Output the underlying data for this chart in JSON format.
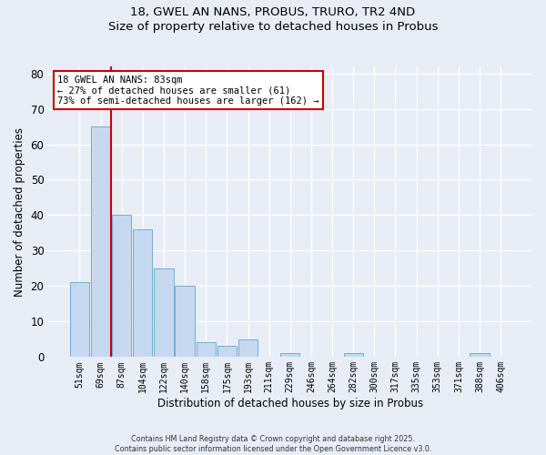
{
  "title": "18, GWEL AN NANS, PROBUS, TRURO, TR2 4ND",
  "subtitle": "Size of property relative to detached houses in Probus",
  "xlabel": "Distribution of detached houses by size in Probus",
  "ylabel": "Number of detached properties",
  "bar_labels": [
    "51sqm",
    "69sqm",
    "87sqm",
    "104sqm",
    "122sqm",
    "140sqm",
    "158sqm",
    "175sqm",
    "193sqm",
    "211sqm",
    "229sqm",
    "246sqm",
    "264sqm",
    "282sqm",
    "300sqm",
    "317sqm",
    "335sqm",
    "353sqm",
    "371sqm",
    "388sqm",
    "406sqm"
  ],
  "bar_values": [
    21,
    65,
    40,
    36,
    25,
    20,
    4,
    3,
    5,
    0,
    1,
    0,
    0,
    1,
    0,
    0,
    0,
    0,
    0,
    1,
    0
  ],
  "bar_color": "#c5d8f0",
  "bar_edge_color": "#6baed6",
  "vline_color": "#cc0000",
  "annotation_title": "18 GWEL AN NANS: 83sqm",
  "annotation_line2": "← 27% of detached houses are smaller (61)",
  "annotation_line3": "73% of semi-detached houses are larger (162) →",
  "annotation_box_facecolor": "#ffffff",
  "annotation_box_edgecolor": "#cc0000",
  "ylim": [
    0,
    82
  ],
  "yticks": [
    0,
    10,
    20,
    30,
    40,
    50,
    60,
    70,
    80
  ],
  "bg_color": "#e8edf5",
  "plot_bg_color": "#e8edf5",
  "footer1": "Contains HM Land Registry data © Crown copyright and database right 2025.",
  "footer2": "Contains public sector information licensed under the Open Government Licence v3.0."
}
